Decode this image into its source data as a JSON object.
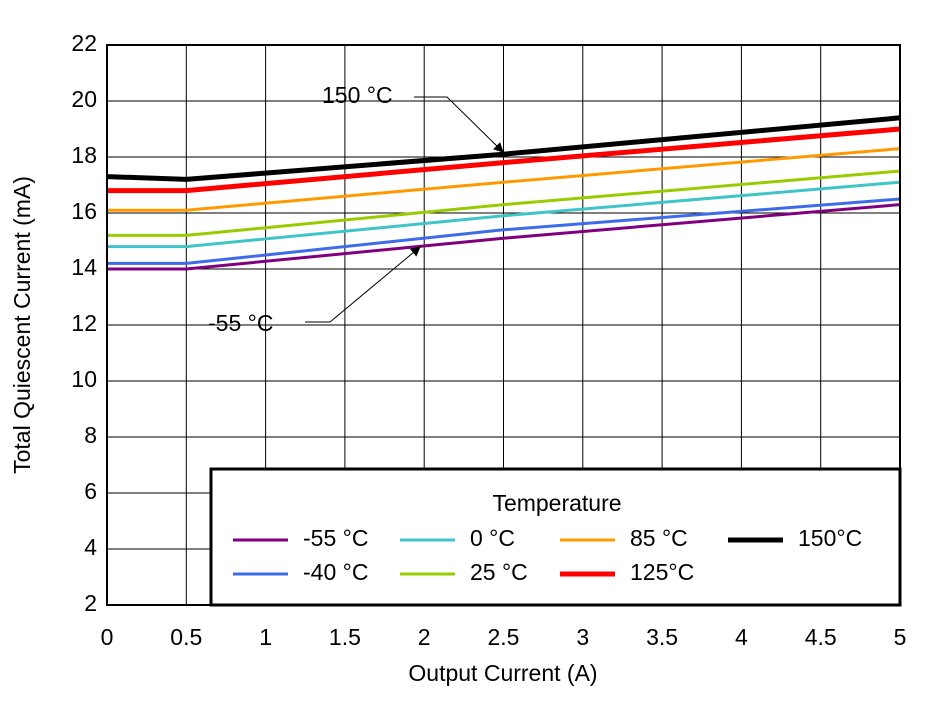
{
  "chart_data": {
    "type": "line",
    "x_label": "Output Current (A)",
    "y_label": "Total Quiescent Current (mA)",
    "x": [
      0,
      0.5,
      2.5,
      5
    ],
    "series": [
      {
        "name": "-55 °C",
        "color": "#800080",
        "values": [
          14.0,
          14.0,
          15.1,
          16.3
        ]
      },
      {
        "name": "-40 °C",
        "color": "#3d6bea",
        "values": [
          14.2,
          14.2,
          15.4,
          16.5
        ]
      },
      {
        "name": "0 °C",
        "color": "#3fc4c8",
        "values": [
          14.8,
          14.8,
          15.9,
          17.1
        ]
      },
      {
        "name": "25 °C",
        "color": "#99cc00",
        "values": [
          15.2,
          15.2,
          16.3,
          17.5
        ]
      },
      {
        "name": "85 °C",
        "color": "#ff9900",
        "values": [
          16.1,
          16.1,
          17.1,
          18.3
        ]
      },
      {
        "name": "125°C",
        "color": "#ff0000",
        "values": [
          16.8,
          16.8,
          17.8,
          19.0
        ]
      },
      {
        "name": "150°C",
        "color": "#000000",
        "values": [
          17.3,
          17.2,
          18.1,
          19.4
        ]
      }
    ],
    "xlim": [
      0,
      5
    ],
    "xticks": [
      0,
      0.5,
      1,
      1.5,
      2,
      2.5,
      3,
      3.5,
      4,
      4.5,
      5
    ],
    "ylim": [
      2,
      22
    ],
    "yticks": [
      2,
      4,
      6,
      8,
      10,
      12,
      14,
      16,
      18,
      20,
      22
    ],
    "grid": true,
    "legend_title": "Temperature",
    "legend_position": "lower right",
    "annotations": [
      "150 °C",
      "-55 °C"
    ]
  }
}
